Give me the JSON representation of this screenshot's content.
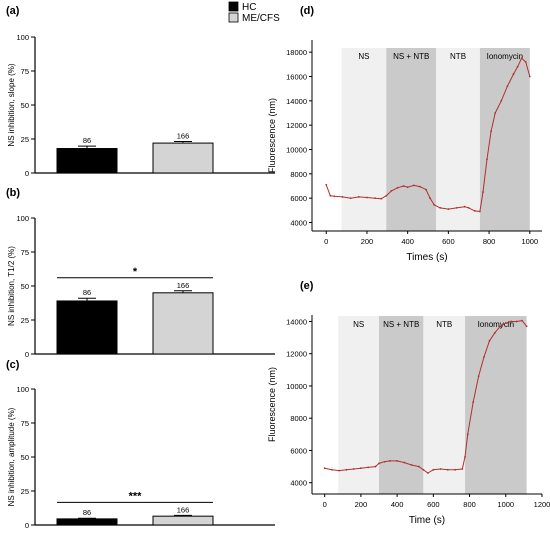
{
  "legend": {
    "items": [
      {
        "label": "HC",
        "color": "#000000"
      },
      {
        "label": "ME/CFS",
        "color": "#d4d4d4"
      }
    ]
  },
  "colors": {
    "hc": "#000000",
    "mecfs": "#d4d4d4",
    "trace": "#b03030",
    "band_light": "#f0f0f0",
    "band_dark": "#cacaca"
  },
  "chart_data": [
    {
      "panel": "(a)",
      "type": "bar",
      "categories": [
        "HC",
        "ME/CFS"
      ],
      "values": [
        18,
        22
      ],
      "errors": [
        1.8,
        1.2
      ],
      "data_labels": [
        "86",
        "166"
      ],
      "ylabel": "NS inhibition, slope (%)",
      "ylim": [
        0,
        100
      ],
      "yticks": [
        "0",
        "25",
        "50",
        "75",
        "100"
      ],
      "significance": ""
    },
    {
      "panel": "(b)",
      "type": "bar",
      "categories": [
        "HC",
        "ME/CFS"
      ],
      "values": [
        39,
        45
      ],
      "errors": [
        2,
        1.5
      ],
      "data_labels": [
        "86",
        "166"
      ],
      "ylabel": "NS inhibition, T1/2 (%)",
      "ylim": [
        0,
        100
      ],
      "yticks": [
        "0",
        "25",
        "50",
        "75",
        "100"
      ],
      "significance": "*"
    },
    {
      "panel": "(c)",
      "type": "bar",
      "categories": [
        "HC",
        "ME/CFS"
      ],
      "values": [
        4.5,
        6.5
      ],
      "errors": [
        0.5,
        0.6
      ],
      "data_labels": [
        "86",
        "166"
      ],
      "ylabel": "NS inhibition, amplitude (%)",
      "ylim": [
        0,
        100
      ],
      "yticks": [
        "0",
        "25",
        "50",
        "75",
        "100"
      ],
      "significance": "***"
    },
    {
      "panel": "(d)",
      "type": "line",
      "xlabel": "Times (s)",
      "ylabel": "Fluorescence (nm)",
      "xlim": [
        -70,
        1060
      ],
      "ylim": [
        3300,
        19000
      ],
      "xticks": [
        "0",
        "200",
        "400",
        "600",
        "800",
        "1000"
      ],
      "yticks": [
        "4000",
        "6000",
        "8000",
        "10000",
        "12000",
        "14000",
        "16000",
        "18000"
      ],
      "phases": [
        {
          "label": "NS",
          "start": 75,
          "end": 295,
          "shade": "light"
        },
        {
          "label": "NS + NTB",
          "start": 295,
          "end": 540,
          "shade": "dark"
        },
        {
          "label": "NTB",
          "start": 540,
          "end": 755,
          "shade": "light"
        },
        {
          "label": "Ionomycin",
          "start": 755,
          "end": 1000,
          "shade": "dark"
        }
      ],
      "x": [
        0,
        20,
        40,
        80,
        120,
        160,
        200,
        240,
        270,
        295,
        320,
        350,
        380,
        400,
        430,
        460,
        490,
        510,
        530,
        560,
        600,
        640,
        680,
        700,
        730,
        755,
        770,
        790,
        810,
        830,
        860,
        890,
        920,
        940,
        960,
        980,
        1000
      ],
      "y": [
        7100,
        6200,
        6150,
        6100,
        6000,
        6100,
        6050,
        6000,
        5950,
        6200,
        6600,
        6850,
        7000,
        6900,
        7050,
        6950,
        6700,
        6000,
        5450,
        5200,
        5100,
        5200,
        5300,
        5200,
        4950,
        4900,
        6500,
        9200,
        11500,
        13000,
        14000,
        15200,
        16200,
        16800,
        17500,
        17200,
        16000
      ]
    },
    {
      "panel": "(e)",
      "type": "line",
      "xlabel": "Time (s)",
      "ylabel": "Fluorescence (nm)",
      "xlim": [
        -70,
        1200
      ],
      "ylim": [
        3300,
        14400
      ],
      "xticks": [
        "0",
        "200",
        "400",
        "600",
        "800",
        "1000",
        "1200"
      ],
      "yticks": [
        "4000",
        "6000",
        "8000",
        "10000",
        "12000",
        "14000"
      ],
      "phases": [
        {
          "label": "NS",
          "start": 75,
          "end": 300,
          "shade": "light"
        },
        {
          "label": "NS + NTB",
          "start": 300,
          "end": 545,
          "shade": "dark"
        },
        {
          "label": "NTB",
          "start": 545,
          "end": 775,
          "shade": "light"
        },
        {
          "label": "Ionomycin",
          "start": 775,
          "end": 1115,
          "shade": "dark"
        }
      ],
      "x": [
        0,
        40,
        80,
        120,
        160,
        200,
        240,
        280,
        300,
        330,
        360,
        400,
        440,
        480,
        520,
        545,
        570,
        600,
        640,
        680,
        720,
        760,
        775,
        790,
        820,
        850,
        880,
        910,
        940,
        970,
        1000,
        1030,
        1060,
        1090,
        1115
      ],
      "y": [
        4900,
        4800,
        4750,
        4800,
        4850,
        4900,
        4950,
        5000,
        5200,
        5300,
        5350,
        5350,
        5250,
        5100,
        5000,
        4800,
        4600,
        4800,
        4850,
        4800,
        4800,
        4850,
        5600,
        7000,
        9000,
        10600,
        11800,
        12800,
        13300,
        13700,
        13900,
        14000,
        14000,
        14050,
        13700
      ]
    }
  ]
}
